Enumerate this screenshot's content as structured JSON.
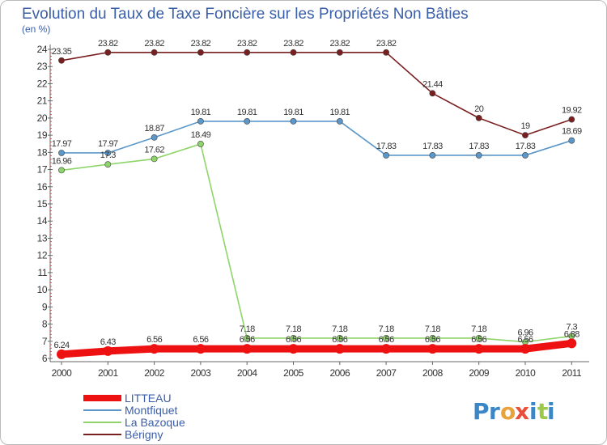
{
  "chart_data": {
    "type": "line",
    "title": "Evolution du Taux de Taxe Foncière sur les Propriétés Non Bâties",
    "subtitle": "(en %)",
    "xlabel": "",
    "ylabel": "",
    "x": [
      "2000",
      "2001",
      "2002",
      "2003",
      "2004",
      "2005",
      "2006",
      "2007",
      "2008",
      "2009",
      "2010",
      "2011"
    ],
    "ylim": [
      6,
      24
    ],
    "yticks": [
      6,
      7,
      8,
      9,
      10,
      11,
      12,
      13,
      14,
      15,
      16,
      17,
      18,
      19,
      20,
      21,
      22,
      23,
      24
    ],
    "grid": false,
    "legend_position": "bottom-left",
    "series": [
      {
        "name": "Bérigny",
        "color": "#7a1f1f",
        "values": [
          23.35,
          23.82,
          23.82,
          23.82,
          23.82,
          23.82,
          23.82,
          23.82,
          21.44,
          20,
          19,
          19.92
        ],
        "labels": [
          "23.35",
          "23.82",
          "23.82",
          "23.82",
          "23.82",
          "23.82",
          "23.82",
          "23.82",
          "21.44",
          "20",
          "19",
          "19.92"
        ]
      },
      {
        "name": "Montfiquet",
        "color": "#5b97c9",
        "values": [
          17.97,
          17.97,
          18.87,
          19.81,
          19.81,
          19.81,
          19.81,
          17.83,
          17.83,
          17.83,
          17.83,
          18.69
        ],
        "labels": [
          "17.97",
          "17.97",
          "18.87",
          "19.81",
          "19.81",
          "19.81",
          "19.81",
          "17.83",
          "17.83",
          "17.83",
          "17.83",
          "18.69"
        ]
      },
      {
        "name": "La Bazoque",
        "color": "#8fd46a",
        "values": [
          16.96,
          17.3,
          17.62,
          18.49,
          7.18,
          7.18,
          7.18,
          7.18,
          7.18,
          7.18,
          6.96,
          7.3
        ],
        "labels": [
          "16.96",
          "17.3",
          "17.62",
          "18.49",
          "7.18",
          "7.18",
          "7.18",
          "7.18",
          "7.18",
          "7.18",
          "6.96",
          "7.3"
        ]
      },
      {
        "name": "LITTEAU",
        "color": "#ee1111",
        "values": [
          6.24,
          6.43,
          6.56,
          6.56,
          6.56,
          6.56,
          6.56,
          6.56,
          6.56,
          6.56,
          6.56,
          6.88
        ],
        "labels": [
          "6.24",
          "6.43",
          "6.56",
          "6.56",
          "6.56",
          "6.56",
          "6.56",
          "6.56",
          "6.56",
          "6.56",
          "6.56",
          "6.88"
        ]
      }
    ],
    "legend": [
      "LITTEAU",
      "Montfiquet",
      "La Bazoque",
      "Bérigny"
    ]
  },
  "brand": {
    "letters": [
      "P",
      "r",
      "o",
      "x",
      "i",
      "t",
      "i"
    ],
    "colors": [
      "#3b86c7",
      "#3b86c7",
      "#e8a33d",
      "#e8503a",
      "#3b86c7",
      "#9cc94a",
      "#3b86c7"
    ]
  }
}
